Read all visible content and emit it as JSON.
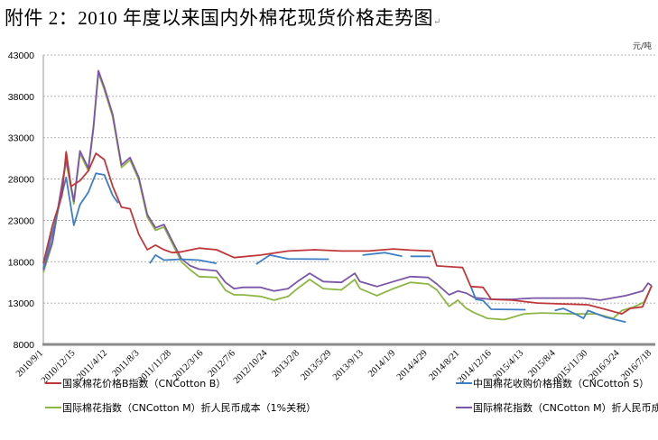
{
  "title": "附件 2：2010 年度以来国内外棉花现货价格走势图",
  "title_mark": "↵",
  "chart_data": {
    "type": "line",
    "title": "附件 2：2010 年度以来国内外棉花现货价格走势图",
    "ylabel": "元/吨",
    "xlabel": "",
    "ylim": [
      8000,
      43000
    ],
    "yticks": [
      8000,
      13000,
      18000,
      23000,
      28000,
      33000,
      38000,
      43000
    ],
    "xticks": [
      "2010/9/1",
      "2010/12/15",
      "2011/4/12",
      "2011/8/3",
      "2011/11/28",
      "2012/3/16",
      "2012/7/6",
      "2012/10/24",
      "2013/2/8",
      "2013/5/29",
      "2013/9/13",
      "2014/1/9",
      "2014/4/29",
      "2014/8/21",
      "2014/12/16",
      "2015/4/13",
      "2015/8/4",
      "2015/11/30",
      "2016/3/24",
      "2016/7/18"
    ],
    "grid": "horizontal-dashed",
    "legend_position": "bottom",
    "series": [
      {
        "name": "国家棉花价格B指数（CNCotton B）",
        "color": "#c0373a",
        "points": [
          [
            "2010/9/1",
            17800
          ],
          [
            "2010/10/1",
            22400
          ],
          [
            "2010/11/1",
            26000
          ],
          [
            "2010/11/15",
            31300
          ],
          [
            "2010/12/1",
            27100
          ],
          [
            "2011/1/1",
            27800
          ],
          [
            "2011/2/1",
            29000
          ],
          [
            "2011/3/1",
            31100
          ],
          [
            "2011/4/1",
            30350
          ],
          [
            "2011/5/1",
            27100
          ],
          [
            "2011/6/1",
            24600
          ],
          [
            "2011/7/1",
            24400
          ],
          [
            "2011/8/1",
            21300
          ],
          [
            "2011/9/1",
            19450
          ],
          [
            "2011/10/1",
            20000
          ],
          [
            "2011/11/1",
            19450
          ],
          [
            "2011/12/1",
            19100
          ],
          [
            "2012/1/1",
            19200
          ],
          [
            "2012/3/1",
            19650
          ],
          [
            "2012/5/1",
            19450
          ],
          [
            "2012/7/1",
            18500
          ],
          [
            "2012/10/1",
            18800
          ],
          [
            "2013/1/1",
            19300
          ],
          [
            "2013/4/1",
            19450
          ],
          [
            "2013/7/1",
            19300
          ],
          [
            "2013/10/1",
            19300
          ],
          [
            "2014/1/1",
            19550
          ],
          [
            "2014/3/1",
            19400
          ],
          [
            "2014/5/15",
            19300
          ],
          [
            "2014/6/1",
            17500
          ],
          [
            "2014/9/1",
            17300
          ],
          [
            "2014/10/1",
            15000
          ],
          [
            "2014/11/15",
            14900
          ],
          [
            "2014/12/15",
            13450
          ],
          [
            "2015/3/1",
            13350
          ],
          [
            "2015/6/1",
            13000
          ],
          [
            "2015/9/1",
            12900
          ],
          [
            "2015/12/1",
            12800
          ],
          [
            "2016/2/1",
            12250
          ],
          [
            "2016/4/1",
            11700
          ],
          [
            "2016/5/1",
            12350
          ],
          [
            "2016/6/15",
            12550
          ],
          [
            "2016/7/18",
            15100
          ]
        ]
      },
      {
        "name": "中国棉花收购价格指数（CNCotton S）",
        "color": "#3c7fc4",
        "points": [
          [
            "2010/9/1",
            17200
          ],
          [
            "2010/10/1",
            21500
          ],
          [
            "2010/11/15",
            28200
          ],
          [
            "2010/12/10",
            22400
          ],
          [
            "2011/1/1",
            24900
          ],
          [
            "2011/2/1",
            26400
          ],
          [
            "2011/3/1",
            28700
          ],
          [
            "2011/4/1",
            28500
          ],
          [
            "2011/5/1",
            26000
          ],
          [
            "2011/5/20",
            25100
          ],
          null,
          [
            "2011/9/10",
            17800
          ],
          [
            "2011/10/1",
            18800
          ],
          [
            "2011/11/1",
            18200
          ],
          [
            "2012/1/1",
            18300
          ],
          [
            "2012/3/1",
            18200
          ],
          [
            "2012/5/1",
            17800
          ],
          null,
          [
            "2012/9/15",
            17700
          ],
          [
            "2012/11/1",
            18800
          ],
          [
            "2013/1/1",
            18350
          ],
          [
            "2013/5/20",
            18300
          ],
          null,
          [
            "2013/9/10",
            18800
          ],
          [
            "2013/12/1",
            19100
          ],
          [
            "2014/2/1",
            18650
          ],
          null,
          [
            "2014/3/1",
            18650
          ],
          [
            "2014/5/10",
            18650
          ],
          null,
          [
            "2014/10/1",
            15000
          ],
          [
            "2014/10/20",
            13450
          ],
          [
            "2014/11/15",
            13300
          ],
          [
            "2014/12/15",
            12250
          ],
          [
            "2015/4/20",
            12200
          ],
          null,
          [
            "2015/8/1",
            12100
          ],
          [
            "2015/9/1",
            12350
          ],
          [
            "2015/10/15",
            11700
          ],
          [
            "2015/11/15",
            11150
          ],
          [
            "2015/12/1",
            12100
          ],
          [
            "2016/2/1",
            11300
          ],
          [
            "2016/4/15",
            10700
          ]
        ]
      },
      {
        "name": "国际棉花指数（CNCotton M）折人民币成本（1%关税）",
        "color": "#8db645",
        "points": [
          [
            "2010/9/1",
            16700
          ],
          [
            "2010/10/1",
            20200
          ],
          [
            "2010/11/15",
            30100
          ],
          [
            "2010/12/10",
            25000
          ],
          [
            "2011/1/1",
            31100
          ],
          [
            "2011/2/1",
            29000
          ],
          [
            "2011/2/20",
            34100
          ],
          [
            "2011/3/10",
            40800
          ],
          [
            "2011/4/1",
            38800
          ],
          [
            "2011/5/1",
            35500
          ],
          [
            "2011/6/1",
            29400
          ],
          [
            "2011/7/1",
            30300
          ],
          [
            "2011/8/1",
            27900
          ],
          [
            "2011/9/1",
            23400
          ],
          [
            "2011/10/1",
            21800
          ],
          [
            "2011/11/1",
            22200
          ],
          [
            "2011/12/1",
            20200
          ],
          [
            "2012/1/1",
            18000
          ],
          [
            "2012/2/1",
            17000
          ],
          [
            "2012/3/1",
            16200
          ],
          [
            "2012/5/1",
            16100
          ],
          [
            "2012/6/1",
            14550
          ],
          [
            "2012/7/1",
            14000
          ],
          [
            "2012/8/1",
            14000
          ],
          [
            "2012/10/1",
            13800
          ],
          [
            "2012/11/15",
            13350
          ],
          [
            "2013/1/1",
            13800
          ],
          [
            "2013/2/1",
            14750
          ],
          [
            "2013/3/15",
            15850
          ],
          [
            "2013/5/1",
            14750
          ],
          [
            "2013/7/1",
            14600
          ],
          [
            "2013/8/15",
            15850
          ],
          [
            "2013/9/1",
            14750
          ],
          [
            "2013/11/1",
            13900
          ],
          [
            "2014/1/1",
            14750
          ],
          [
            "2014/3/1",
            15500
          ],
          [
            "2014/5/1",
            15300
          ],
          [
            "2014/6/1",
            14600
          ],
          [
            "2014/7/15",
            12600
          ],
          [
            "2014/8/15",
            13350
          ],
          [
            "2014/9/15",
            12350
          ],
          [
            "2014/10/15",
            11800
          ],
          [
            "2014/12/1",
            11150
          ],
          [
            "2015/2/1",
            11000
          ],
          [
            "2015/4/15",
            11700
          ],
          [
            "2015/6/15",
            11800
          ],
          [
            "2015/8/15",
            11750
          ],
          [
            "2015/10/15",
            11700
          ],
          [
            "2016/1/1",
            11700
          ],
          [
            "2016/3/1",
            11150
          ],
          [
            "2016/4/1",
            12100
          ],
          [
            "2016/5/15",
            12550
          ],
          [
            "2016/6/20",
            13100
          ],
          [
            "2016/7/18",
            15100
          ]
        ]
      },
      {
        "name": "国际棉花指数（CNCotton M）折人民币成本（滑准税）",
        "color": "#7b56a8",
        "points": [
          [
            "2010/9/1",
            17000
          ],
          [
            "2010/10/1",
            20500
          ],
          [
            "2010/11/15",
            30400
          ],
          [
            "2010/12/10",
            25300
          ],
          [
            "2011/1/1",
            31400
          ],
          [
            "2011/2/1",
            29300
          ],
          [
            "2011/2/20",
            34400
          ],
          [
            "2011/3/10",
            41100
          ],
          [
            "2011/4/1",
            39100
          ],
          [
            "2011/5/1",
            35800
          ],
          [
            "2011/6/1",
            29700
          ],
          [
            "2011/7/1",
            30600
          ],
          [
            "2011/8/1",
            28200
          ],
          [
            "2011/9/1",
            23700
          ],
          [
            "2011/10/1",
            22100
          ],
          [
            "2011/11/1",
            22500
          ],
          [
            "2011/12/1",
            20500
          ],
          [
            "2012/1/1",
            18350
          ],
          [
            "2012/2/1",
            17500
          ],
          [
            "2012/3/1",
            17100
          ],
          [
            "2012/5/1",
            16900
          ],
          [
            "2012/6/1",
            15500
          ],
          [
            "2012/7/1",
            14750
          ],
          [
            "2012/8/1",
            14900
          ],
          [
            "2012/10/1",
            14900
          ],
          [
            "2012/11/15",
            14450
          ],
          [
            "2013/1/1",
            14750
          ],
          [
            "2013/2/1",
            15600
          ],
          [
            "2013/3/15",
            16600
          ],
          [
            "2013/5/1",
            15600
          ],
          [
            "2013/7/1",
            15500
          ],
          [
            "2013/8/15",
            16600
          ],
          [
            "2013/9/1",
            15600
          ],
          [
            "2013/11/1",
            15000
          ],
          [
            "2014/1/1",
            15600
          ],
          [
            "2014/3/1",
            16200
          ],
          [
            "2014/5/1",
            16100
          ],
          [
            "2014/6/1",
            15300
          ],
          [
            "2014/7/15",
            14000
          ],
          [
            "2014/8/15",
            14450
          ],
          [
            "2014/9/15",
            14200
          ],
          [
            "2014/10/15",
            13650
          ],
          [
            "2014/12/15",
            13450
          ],
          [
            "2015/3/1",
            13450
          ],
          [
            "2015/5/15",
            13600
          ],
          [
            "2015/8/15",
            13600
          ],
          [
            "2015/11/15",
            13600
          ],
          [
            "2016/1/15",
            13350
          ],
          [
            "2016/4/15",
            13900
          ],
          [
            "2016/6/15",
            14450
          ],
          [
            "2016/7/5",
            15400
          ],
          [
            "2016/7/18",
            15100
          ]
        ]
      }
    ]
  }
}
